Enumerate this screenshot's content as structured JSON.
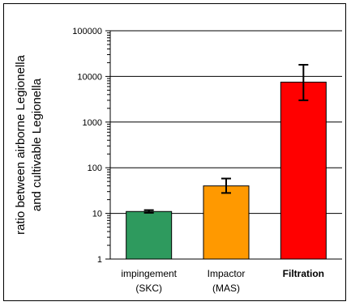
{
  "chart_data": {
    "type": "bar",
    "categories": [
      {
        "line1": "impingement",
        "line2": "(SKC)",
        "bold": false
      },
      {
        "line1": "Impactor",
        "line2": "(MAS)",
        "bold": false
      },
      {
        "line1": "Filtration",
        "line2": "",
        "bold": true
      }
    ],
    "values": [
      11,
      40,
      7500
    ],
    "error_low": [
      10.3,
      28,
      3000
    ],
    "error_high": [
      11.8,
      58,
      18000
    ],
    "colors": [
      "#2e9a5e",
      "#ff9900",
      "#ff0000"
    ],
    "title": "",
    "xlabel": "",
    "ylabel_line1": "ratio between airborne Legionella",
    "ylabel_line2": "and cultivable Legionella",
    "yscale": "log",
    "ylim": [
      1,
      100000
    ],
    "ytick_values": [
      1,
      10,
      100,
      1000,
      10000,
      100000
    ],
    "ytick_labels": [
      "1",
      "10",
      "100",
      "1000",
      "10000",
      "100000"
    ],
    "grid": true
  }
}
